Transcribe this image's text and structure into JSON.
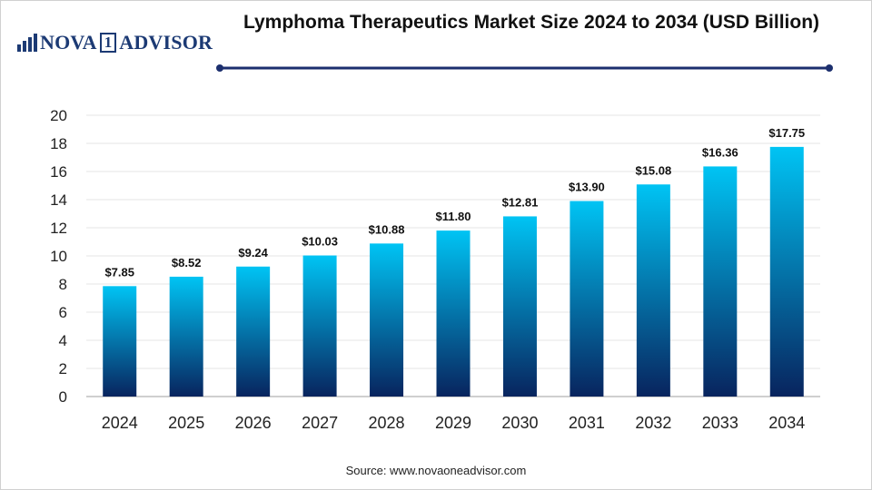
{
  "brand": {
    "name_left": "NOVA",
    "name_digit": "1",
    "name_right": "ADVISOR",
    "color": "#1c3a74"
  },
  "header": {
    "title": "Lymphoma Therapeutics Market Size 2024 to 2034 (USD Billion)"
  },
  "footer": {
    "source": "Source: www.novaoneadvisor.com"
  },
  "colors": {
    "bar_top": "#00c4f4",
    "bar_bottom": "#08245e",
    "rule": "#1c2f6e",
    "grid": "#e6e6e6",
    "axis": "#bfbfbf"
  },
  "chart_data": {
    "type": "bar",
    "categories": [
      "2024",
      "2025",
      "2026",
      "2027",
      "2028",
      "2029",
      "2030",
      "2031",
      "2032",
      "2033",
      "2034"
    ],
    "values": [
      7.85,
      8.52,
      9.24,
      10.03,
      10.88,
      11.8,
      12.81,
      13.9,
      15.08,
      16.36,
      17.75
    ],
    "data_labels": [
      "$7.85",
      "$8.52",
      "$9.24",
      "$10.03",
      "$10.88",
      "$11.80",
      "$12.81",
      "$13.90",
      "$15.08",
      "$16.36",
      "$17.75"
    ],
    "yticks": [
      0,
      2,
      4,
      6,
      8,
      10,
      12,
      14,
      16,
      18,
      20
    ],
    "ylim": [
      0,
      20
    ],
    "grid": true,
    "legend": "none"
  }
}
